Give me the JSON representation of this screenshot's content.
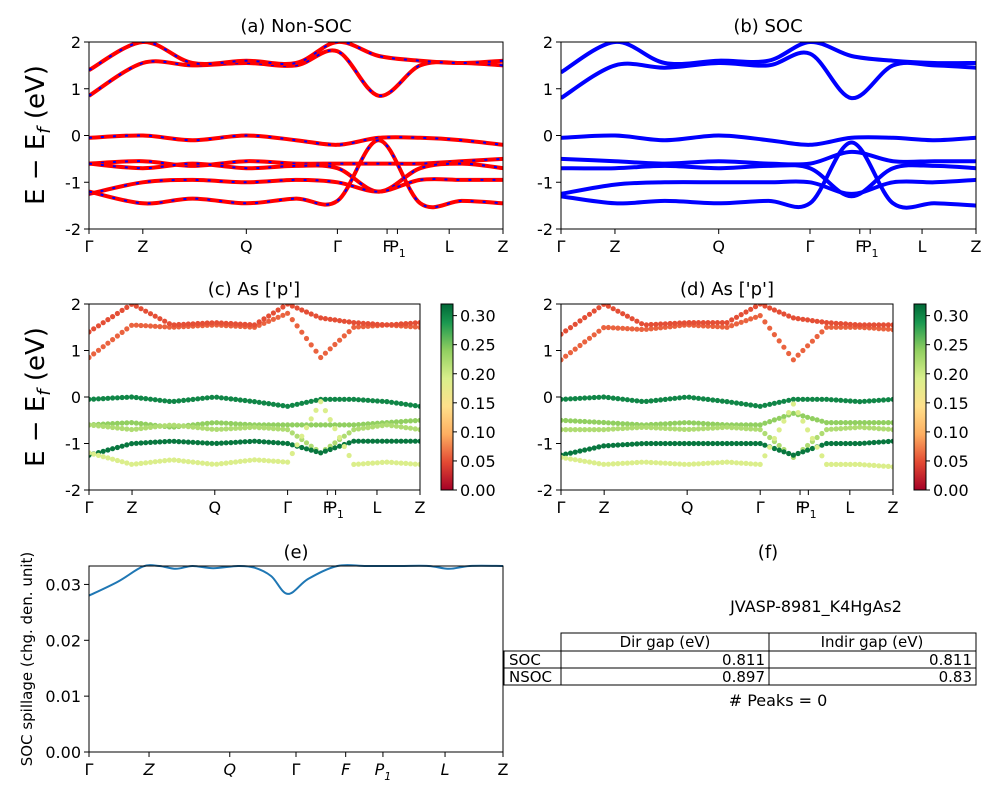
{
  "figure_id": "JVASP-8981_K4HgAs2",
  "ylabel_band": "E − E",
  "ylabel_band_sub": "f",
  "ylabel_band_unit": " (eV)",
  "kpath": [
    "Γ",
    "Z",
    "Q",
    "Γ",
    "F",
    "P",
    "L",
    "Z"
  ],
  "kpath_sub": [
    "",
    "",
    "",
    "",
    "",
    "1",
    "",
    ""
  ],
  "colorbar_ticks": [
    "0.00",
    "0.05",
    "0.10",
    "0.15",
    "0.20",
    "0.25",
    "0.30"
  ],
  "table": {
    "col_headers": [
      "Dir gap (eV)",
      "Indir gap (eV)"
    ],
    "rows": [
      {
        "label": "SOC",
        "dir": "0.811",
        "indir": "0.811"
      },
      {
        "label": "NSOC",
        "dir": "0.897",
        "indir": "0.83"
      }
    ],
    "peaks": "# Peaks = 0"
  },
  "colors": {
    "soc": "#0000ff",
    "nonsoc": "#ff0000",
    "spillage": "#1f77b4"
  },
  "chart_data": [
    {
      "id": "a",
      "type": "line",
      "title": "(a) Non-SOC",
      "ylim": [
        -2,
        2
      ],
      "yticks": [
        "-2",
        "-1",
        "0",
        "1",
        "2"
      ],
      "xlabel": "",
      "ylabel": "E − E_f (eV)",
      "style": "nonsoc",
      "bands_description_x": "normalized k-path 0..1",
      "series": [
        {
          "x": [
            0,
            0.13,
            0.25,
            0.38,
            0.5,
            0.6,
            0.7,
            0.8,
            0.9,
            1
          ],
          "values": [
            0.85,
            1.55,
            1.5,
            1.55,
            1.5,
            1.8,
            0.85,
            1.5,
            1.55,
            1.5
          ]
        },
        {
          "x": [
            0,
            0.13,
            0.25,
            0.38,
            0.5,
            0.6,
            0.7,
            0.8,
            0.9,
            1
          ],
          "values": [
            1.4,
            2.0,
            1.55,
            1.6,
            1.55,
            2.0,
            1.7,
            1.6,
            1.55,
            1.6
          ]
        },
        {
          "x": [
            0,
            0.13,
            0.25,
            0.38,
            0.5,
            0.6,
            0.7,
            0.8,
            0.9,
            1
          ],
          "values": [
            -0.05,
            0.0,
            -0.1,
            0.0,
            -0.1,
            -0.2,
            -0.05,
            -0.05,
            -0.1,
            -0.2
          ]
        },
        {
          "x": [
            0,
            0.13,
            0.25,
            0.38,
            0.5,
            0.6,
            0.7,
            0.8,
            0.9,
            1
          ],
          "values": [
            -0.6,
            -0.55,
            -0.65,
            -0.55,
            -0.6,
            -0.6,
            -0.6,
            -0.6,
            -0.55,
            -0.5
          ]
        },
        {
          "x": [
            0,
            0.13,
            0.25,
            0.38,
            0.5,
            0.6,
            0.7,
            0.8,
            0.9,
            1
          ],
          "values": [
            -0.6,
            -0.7,
            -0.6,
            -0.7,
            -0.65,
            -0.7,
            -1.2,
            -0.7,
            -0.6,
            -0.7
          ]
        },
        {
          "x": [
            0,
            0.13,
            0.25,
            0.38,
            0.5,
            0.6,
            0.7,
            0.8,
            0.9,
            1
          ],
          "values": [
            -1.25,
            -1.0,
            -0.95,
            -1.0,
            -0.95,
            -1.0,
            -1.2,
            -0.95,
            -0.95,
            -0.95
          ]
        },
        {
          "x": [
            0,
            0.13,
            0.25,
            0.38,
            0.5,
            0.6,
            0.7,
            0.8,
            0.9,
            1
          ],
          "values": [
            -1.2,
            -1.45,
            -1.35,
            -1.45,
            -1.35,
            -1.4,
            -0.1,
            -1.45,
            -1.4,
            -1.45
          ]
        }
      ]
    },
    {
      "id": "b",
      "type": "line",
      "title": "(b) SOC",
      "ylim": [
        -2,
        2
      ],
      "yticks": [
        "-2",
        "-1",
        "0",
        "1",
        "2"
      ],
      "xlabel": "",
      "ylabel": "",
      "style": "soc",
      "series": [
        {
          "x": [
            0,
            0.13,
            0.25,
            0.38,
            0.5,
            0.6,
            0.7,
            0.8,
            0.9,
            1
          ],
          "values": [
            0.8,
            1.5,
            1.45,
            1.55,
            1.5,
            1.75,
            0.8,
            1.5,
            1.5,
            1.45
          ]
        },
        {
          "x": [
            0,
            0.13,
            0.25,
            0.38,
            0.5,
            0.6,
            0.7,
            0.8,
            0.9,
            1
          ],
          "values": [
            1.35,
            2.0,
            1.55,
            1.6,
            1.6,
            2.0,
            1.7,
            1.6,
            1.55,
            1.55
          ]
        },
        {
          "x": [
            0,
            0.13,
            0.25,
            0.38,
            0.5,
            0.6,
            0.7,
            0.8,
            0.9,
            1
          ],
          "values": [
            -0.05,
            0.0,
            -0.1,
            0.0,
            -0.1,
            -0.2,
            -0.05,
            -0.05,
            -0.1,
            -0.05
          ]
        },
        {
          "x": [
            0,
            0.13,
            0.25,
            0.38,
            0.5,
            0.6,
            0.7,
            0.8,
            0.9,
            1
          ],
          "values": [
            -0.5,
            -0.55,
            -0.6,
            -0.55,
            -0.6,
            -0.6,
            -0.35,
            -0.55,
            -0.55,
            -0.55
          ]
        },
        {
          "x": [
            0,
            0.13,
            0.25,
            0.38,
            0.5,
            0.6,
            0.7,
            0.8,
            0.9,
            1
          ],
          "values": [
            -0.7,
            -0.7,
            -0.65,
            -0.7,
            -0.65,
            -0.7,
            -1.3,
            -0.7,
            -0.65,
            -0.7
          ]
        },
        {
          "x": [
            0,
            0.13,
            0.25,
            0.38,
            0.5,
            0.6,
            0.7,
            0.8,
            0.9,
            1
          ],
          "values": [
            -1.25,
            -1.05,
            -1.0,
            -1.0,
            -1.0,
            -1.0,
            -1.25,
            -1.0,
            -1.0,
            -0.95
          ]
        },
        {
          "x": [
            0,
            0.13,
            0.25,
            0.38,
            0.5,
            0.6,
            0.7,
            0.8,
            0.9,
            1
          ],
          "values": [
            -1.3,
            -1.45,
            -1.4,
            -1.45,
            -1.4,
            -1.45,
            -0.15,
            -1.45,
            -1.45,
            -1.5
          ]
        }
      ]
    },
    {
      "id": "c",
      "type": "scatter",
      "title": "(c)  As ['p']",
      "ylim": [
        -2,
        2
      ],
      "yticks": [
        "-2",
        "-1",
        "0",
        "1",
        "2"
      ],
      "ylabel": "E − E_f (eV)",
      "colorbar_range": [
        0,
        0.32
      ],
      "series": [
        {
          "x": [
            0,
            0.13,
            0.25,
            0.38,
            0.5,
            0.6,
            0.7,
            0.8,
            0.9,
            1
          ],
          "values": [
            0.85,
            1.55,
            1.5,
            1.55,
            1.5,
            1.8,
            0.85,
            1.5,
            1.55,
            1.5
          ],
          "weight": 0.06
        },
        {
          "x": [
            0,
            0.13,
            0.25,
            0.38,
            0.5,
            0.6,
            0.7,
            0.8,
            0.9,
            1
          ],
          "values": [
            1.4,
            2.0,
            1.55,
            1.6,
            1.55,
            2.0,
            1.7,
            1.6,
            1.55,
            1.6
          ],
          "weight": 0.05
        },
        {
          "x": [
            0,
            0.13,
            0.25,
            0.38,
            0.5,
            0.6,
            0.7,
            0.8,
            0.9,
            1
          ],
          "values": [
            -0.05,
            0.0,
            -0.1,
            0.0,
            -0.1,
            -0.2,
            -0.05,
            -0.05,
            -0.1,
            -0.2
          ],
          "weight": 0.3
        },
        {
          "x": [
            0,
            0.13,
            0.25,
            0.38,
            0.5,
            0.6,
            0.7,
            0.8,
            0.9,
            1
          ],
          "values": [
            -0.6,
            -0.55,
            -0.65,
            -0.55,
            -0.6,
            -0.6,
            -0.6,
            -0.6,
            -0.55,
            -0.5
          ],
          "weight": 0.24
        },
        {
          "x": [
            0,
            0.13,
            0.25,
            0.38,
            0.5,
            0.6,
            0.7,
            0.8,
            0.9,
            1
          ],
          "values": [
            -0.6,
            -0.7,
            -0.6,
            -0.7,
            -0.65,
            -0.7,
            -1.2,
            -0.7,
            -0.6,
            -0.7
          ],
          "weight": 0.22
        },
        {
          "x": [
            0,
            0.13,
            0.25,
            0.38,
            0.5,
            0.6,
            0.7,
            0.8,
            0.9,
            1
          ],
          "values": [
            -1.25,
            -1.0,
            -0.95,
            -1.0,
            -0.95,
            -1.0,
            -1.2,
            -0.95,
            -0.95,
            -0.95
          ],
          "weight": 0.31
        },
        {
          "x": [
            0,
            0.13,
            0.25,
            0.38,
            0.5,
            0.6,
            0.7,
            0.8,
            0.9,
            1
          ],
          "values": [
            -1.2,
            -1.45,
            -1.35,
            -1.45,
            -1.35,
            -1.4,
            -0.1,
            -1.45,
            -1.4,
            -1.45
          ],
          "weight": 0.19
        }
      ]
    },
    {
      "id": "d",
      "type": "scatter",
      "title": "(d) As ['p']",
      "ylim": [
        -2,
        2
      ],
      "yticks": [
        "-2",
        "-1",
        "0",
        "1",
        "2"
      ],
      "ylabel": "",
      "colorbar_range": [
        0,
        0.32
      ],
      "series": [
        {
          "x": [
            0,
            0.13,
            0.25,
            0.38,
            0.5,
            0.6,
            0.7,
            0.8,
            0.9,
            1
          ],
          "values": [
            0.8,
            1.5,
            1.45,
            1.55,
            1.5,
            1.75,
            0.8,
            1.5,
            1.5,
            1.45
          ],
          "weight": 0.06
        },
        {
          "x": [
            0,
            0.13,
            0.25,
            0.38,
            0.5,
            0.6,
            0.7,
            0.8,
            0.9,
            1
          ],
          "values": [
            1.35,
            2.0,
            1.55,
            1.6,
            1.6,
            2.0,
            1.7,
            1.6,
            1.55,
            1.55
          ],
          "weight": 0.05
        },
        {
          "x": [
            0,
            0.13,
            0.25,
            0.38,
            0.5,
            0.6,
            0.7,
            0.8,
            0.9,
            1
          ],
          "values": [
            -0.05,
            0.0,
            -0.1,
            0.0,
            -0.1,
            -0.2,
            -0.05,
            -0.05,
            -0.1,
            -0.05
          ],
          "weight": 0.3
        },
        {
          "x": [
            0,
            0.13,
            0.25,
            0.38,
            0.5,
            0.6,
            0.7,
            0.8,
            0.9,
            1
          ],
          "values": [
            -0.5,
            -0.55,
            -0.6,
            -0.55,
            -0.6,
            -0.6,
            -0.35,
            -0.55,
            -0.55,
            -0.55
          ],
          "weight": 0.24
        },
        {
          "x": [
            0,
            0.13,
            0.25,
            0.38,
            0.5,
            0.6,
            0.7,
            0.8,
            0.9,
            1
          ],
          "values": [
            -0.7,
            -0.7,
            -0.65,
            -0.7,
            -0.65,
            -0.7,
            -1.3,
            -0.7,
            -0.65,
            -0.7
          ],
          "weight": 0.22
        },
        {
          "x": [
            0,
            0.13,
            0.25,
            0.38,
            0.5,
            0.6,
            0.7,
            0.8,
            0.9,
            1
          ],
          "values": [
            -1.25,
            -1.05,
            -1.0,
            -1.0,
            -1.0,
            -1.0,
            -1.25,
            -1.0,
            -1.0,
            -0.95
          ],
          "weight": 0.31
        },
        {
          "x": [
            0,
            0.13,
            0.25,
            0.38,
            0.5,
            0.6,
            0.7,
            0.8,
            0.9,
            1
          ],
          "values": [
            -1.3,
            -1.45,
            -1.4,
            -1.45,
            -1.4,
            -1.45,
            -0.15,
            -1.45,
            -1.45,
            -1.5
          ],
          "weight": 0.19
        }
      ]
    },
    {
      "id": "e",
      "type": "line",
      "title": "(e)",
      "ylabel": "SOC spillage (chg. den. unit)",
      "ylim": [
        0,
        0.0333
      ],
      "yticks": [
        "0.00",
        "0.01",
        "0.02",
        "0.03"
      ],
      "series": [
        {
          "x": [
            0,
            0.07,
            0.13,
            0.17,
            0.21,
            0.25,
            0.3,
            0.36,
            0.4,
            0.44,
            0.48,
            0.53,
            0.6,
            0.67,
            0.75,
            0.82,
            0.87,
            0.92,
            1
          ],
          "values": [
            0.028,
            0.0305,
            0.0332,
            0.0333,
            0.0328,
            0.0333,
            0.0329,
            0.0333,
            0.033,
            0.0315,
            0.0283,
            0.031,
            0.0333,
            0.0333,
            0.0333,
            0.0333,
            0.0328,
            0.0333,
            0.0333
          ]
        }
      ]
    },
    {
      "id": "f",
      "type": "table",
      "title": "(f)"
    }
  ]
}
